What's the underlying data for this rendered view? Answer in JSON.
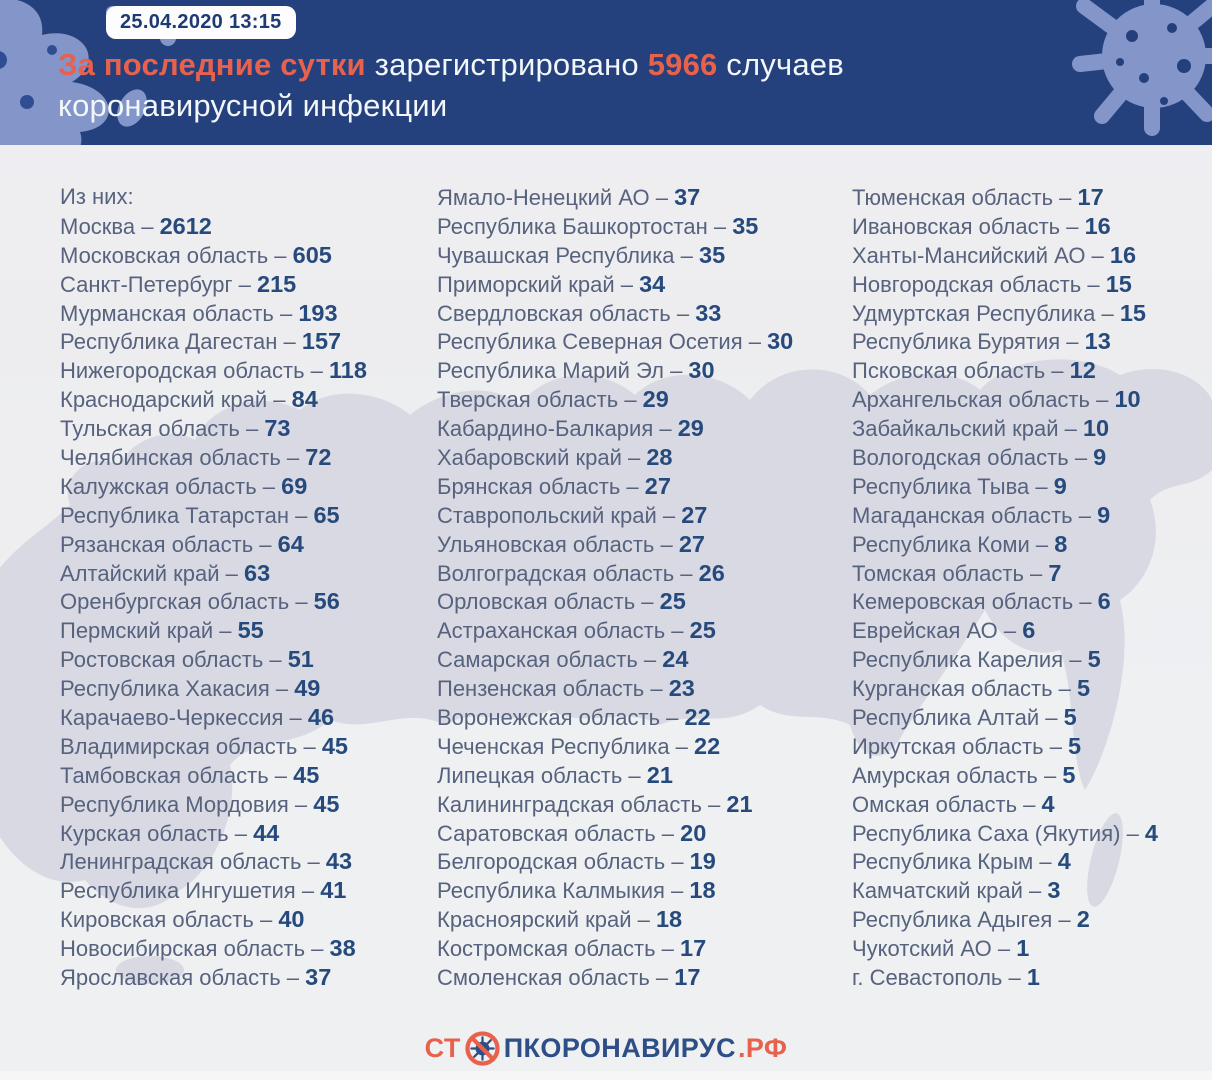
{
  "header": {
    "datetime": "25.04.2020 13:15",
    "title": {
      "highlight": "За последние сутки",
      "middle": "зарегистрировано",
      "number": "5966",
      "tail": "случаев",
      "line2": "коронавирусной инфекции"
    }
  },
  "stats": {
    "intro": "Из них:",
    "columns": [
      [
        {
          "name": "Москва",
          "value": "2612"
        },
        {
          "name": "Московская область",
          "value": "605"
        },
        {
          "name": "Санкт-Петербург",
          "value": "215"
        },
        {
          "name": "Мурманская область",
          "value": "193"
        },
        {
          "name": "Республика Дагестан",
          "value": "157"
        },
        {
          "name": "Нижегородская область",
          "value": "118"
        },
        {
          "name": "Краснодарский край",
          "value": "84"
        },
        {
          "name": "Тульская область",
          "value": "73"
        },
        {
          "name": "Челябинская область",
          "value": "72"
        },
        {
          "name": "Калужская область",
          "value": "69"
        },
        {
          "name": "Республика Татарстан",
          "value": "65"
        },
        {
          "name": "Рязанская область",
          "value": "64"
        },
        {
          "name": "Алтайский край",
          "value": "63"
        },
        {
          "name": "Оренбургская область",
          "value": "56"
        },
        {
          "name": "Пермский край",
          "value": "55"
        },
        {
          "name": "Ростовская область",
          "value": "51"
        },
        {
          "name": "Республика Хакасия",
          "value": "49"
        },
        {
          "name": "Карачаево-Черкессия",
          "value": "46"
        },
        {
          "name": "Владимирская область",
          "value": "45"
        },
        {
          "name": "Тамбовская область",
          "value": "45"
        },
        {
          "name": "Республика Мордовия",
          "value": "45"
        },
        {
          "name": "Курская область",
          "value": "44"
        },
        {
          "name": "Ленинградская область",
          "value": "43"
        },
        {
          "name": "Республика Ингушетия",
          "value": "41"
        },
        {
          "name": "Кировская область",
          "value": "40"
        },
        {
          "name": "Новосибирская область",
          "value": "38"
        },
        {
          "name": "Ярославская область",
          "value": "37"
        }
      ],
      [
        {
          "name": "Ямало-Ненецкий АО",
          "value": "37"
        },
        {
          "name": "Республика Башкортостан",
          "value": "35"
        },
        {
          "name": "Чувашская Республика",
          "value": "35"
        },
        {
          "name": "Приморский край",
          "value": "34"
        },
        {
          "name": "Свердловская область",
          "value": "33"
        },
        {
          "name": "Республика Северная Осетия",
          "value": "30"
        },
        {
          "name": "Республика Марий Эл",
          "value": "30"
        },
        {
          "name": "Тверская область",
          "value": "29"
        },
        {
          "name": "Кабардино-Балкария",
          "value": "29"
        },
        {
          "name": "Хабаровский край",
          "value": "28"
        },
        {
          "name": "Брянская область",
          "value": "27"
        },
        {
          "name": "Ставропольский край",
          "value": "27"
        },
        {
          "name": "Ульяновская область",
          "value": "27"
        },
        {
          "name": "Волгоградская область",
          "value": "26"
        },
        {
          "name": "Орловская область",
          "value": "25"
        },
        {
          "name": "Астраханская область",
          "value": "25"
        },
        {
          "name": "Самарская область",
          "value": "24"
        },
        {
          "name": "Пензенская область",
          "value": "23"
        },
        {
          "name": "Воронежская область",
          "value": "22"
        },
        {
          "name": "Чеченская Республика",
          "value": "22"
        },
        {
          "name": "Липецкая область",
          "value": "21"
        },
        {
          "name": "Калининградская область",
          "value": "21"
        },
        {
          "name": "Саратовская область",
          "value": "20"
        },
        {
          "name": "Белгородская область",
          "value": "19"
        },
        {
          "name": "Республика Калмыкия",
          "value": "18"
        },
        {
          "name": "Красноярский край",
          "value": "18"
        },
        {
          "name": "Костромская область",
          "value": "17"
        },
        {
          "name": "Смоленская область",
          "value": "17"
        }
      ],
      [
        {
          "name": "Тюменская область",
          "value": "17"
        },
        {
          "name": "Ивановская область",
          "value": "16"
        },
        {
          "name": "Ханты-Мансийский АО",
          "value": "16"
        },
        {
          "name": "Новгородская область",
          "value": "15"
        },
        {
          "name": "Удмуртская Республика",
          "value": "15"
        },
        {
          "name": "Республика Бурятия",
          "value": "13"
        },
        {
          "name": "Псковская область",
          "value": "12"
        },
        {
          "name": "Архангельская область",
          "value": "10"
        },
        {
          "name": "Забайкальский край",
          "value": "10"
        },
        {
          "name": "Вологодская область",
          "value": "9"
        },
        {
          "name": "Республика Тыва",
          "value": "9"
        },
        {
          "name": "Магаданская область",
          "value": "9"
        },
        {
          "name": "Республика Коми",
          "value": "8"
        },
        {
          "name": "Томская область",
          "value": "7"
        },
        {
          "name": "Кемеровская область",
          "value": "6"
        },
        {
          "name": "Еврейская АО",
          "value": "6"
        },
        {
          "name": "Республика Карелия",
          "value": "5"
        },
        {
          "name": "Курганская область",
          "value": "5"
        },
        {
          "name": "Республика Алтай",
          "value": "5"
        },
        {
          "name": "Иркутская область",
          "value": "5"
        },
        {
          "name": "Амурская область",
          "value": "5"
        },
        {
          "name": "Омская область",
          "value": "4"
        },
        {
          "name": "Республика Саха (Якутия)",
          "value": "4"
        },
        {
          "name": "Республика Крым",
          "value": "4"
        },
        {
          "name": "Камчатский край",
          "value": "3"
        },
        {
          "name": "Республика Адыгея",
          "value": "2"
        },
        {
          "name": "Чукотский АО",
          "value": "1"
        },
        {
          "name": "г. Севастополь",
          "value": "1"
        }
      ]
    ]
  },
  "footer": {
    "logo_prefix": "СТ",
    "logo_middle": "ПКОРОНАВИРУС",
    "logo_suffix": ".РФ"
  },
  "colors": {
    "header_bg": "#24417d",
    "accent_orange": "#e8614d",
    "body_bg": "#eff0f2",
    "map_fill": "#d8d9e3",
    "region_name": "#57637e",
    "region_number": "#274a7c",
    "logo_blue": "#2d4e86",
    "decoration_blue": "#8395c9"
  }
}
